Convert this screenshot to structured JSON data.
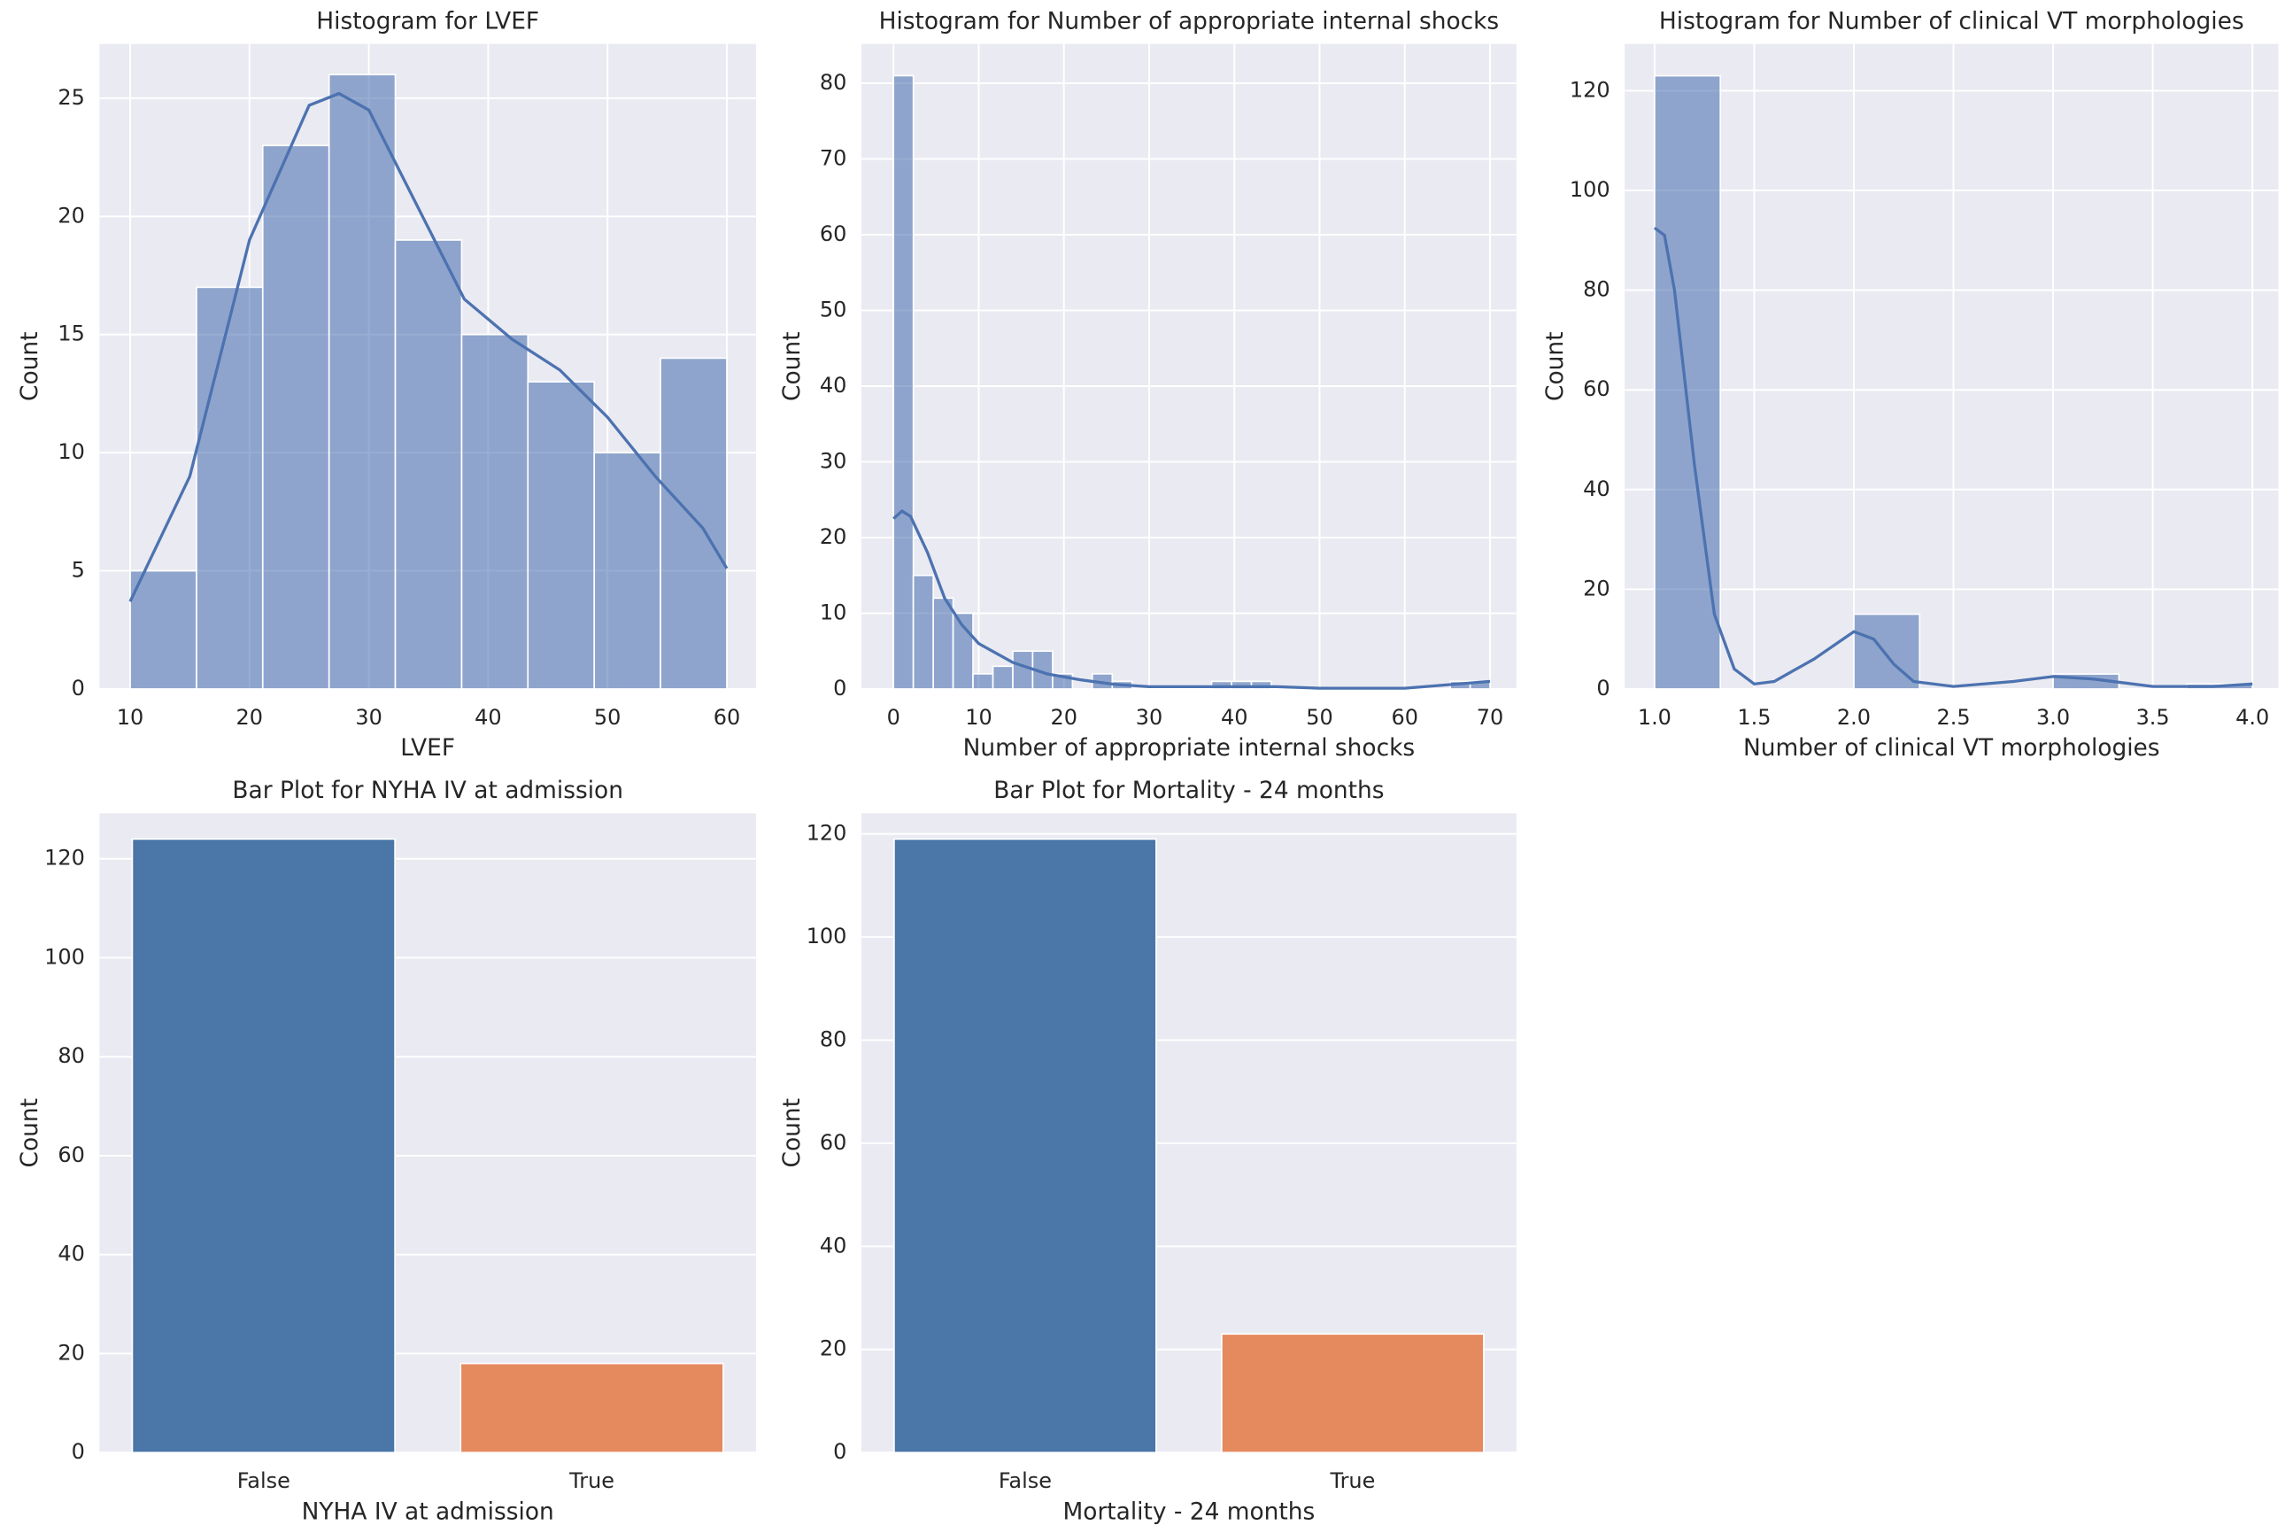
{
  "chart_data": [
    {
      "type": "histogram",
      "title": "Histogram for LVEF",
      "x_label": "LVEF",
      "y_label": "Count",
      "bins": [
        10,
        15.56,
        21.11,
        26.67,
        32.22,
        37.78,
        43.33,
        48.89,
        54.44,
        60
      ],
      "values": [
        5,
        17,
        23,
        26,
        19,
        15,
        13,
        10,
        14
      ],
      "color": "#4c72b0",
      "kde": {
        "x": [
          10,
          15,
          20,
          25,
          27.5,
          30,
          35,
          38,
          42,
          46,
          50,
          54,
          58,
          60
        ],
        "values": [
          3.7,
          9,
          19,
          24.7,
          25.2,
          24.5,
          19.5,
          16.5,
          14.8,
          13.5,
          11.5,
          9,
          6.8,
          5.1
        ]
      },
      "xlim": [
        7.43,
        62.45
      ],
      "ylim": [
        0,
        27.3
      ],
      "xticks": [
        10,
        20,
        30,
        40,
        50,
        60
      ],
      "yticks": [
        0,
        5,
        10,
        15,
        20,
        25
      ],
      "grid": true
    },
    {
      "type": "histogram",
      "title": "Histogram for Number of appropriate internal shocks",
      "x_label": "Number of appropriate internal shocks",
      "y_label": "Count",
      "bins": [
        0,
        2.33,
        4.67,
        7,
        9.33,
        11.67,
        14,
        16.33,
        18.67,
        21,
        23.33,
        25.67,
        28,
        30.33,
        32.67,
        35,
        37.33,
        39.67,
        42,
        44.33,
        46.67,
        49,
        51.33,
        53.67,
        56,
        58.33,
        60.67,
        63,
        65.33,
        67.67,
        70
      ],
      "values": [
        81,
        15,
        12,
        10,
        2,
        3,
        5,
        5,
        2,
        0,
        2,
        1,
        0,
        0,
        0,
        0,
        1,
        1,
        1,
        0,
        0,
        0,
        0,
        0,
        0,
        0,
        0,
        0,
        1,
        1
      ],
      "color": "#4c72b0",
      "kde": {
        "x": [
          0,
          1,
          2,
          4,
          6,
          8,
          10,
          14,
          18,
          22,
          26,
          30,
          40,
          45,
          50,
          60,
          70
        ],
        "values": [
          22.5,
          23.5,
          22.8,
          18,
          12,
          8.5,
          6,
          3.5,
          2,
          1.2,
          0.6,
          0.3,
          0.3,
          0.3,
          0.1,
          0.1,
          1
        ]
      },
      "xlim": [
        -3.77,
        73.1
      ],
      "ylim": [
        0,
        85.2
      ],
      "xticks": [
        0,
        10,
        20,
        30,
        40,
        50,
        60,
        70
      ],
      "yticks": [
        0,
        10,
        20,
        30,
        40,
        50,
        60,
        70,
        80
      ],
      "grid": true
    },
    {
      "type": "histogram",
      "title": "Histogram for Number of clinical VT morphologies",
      "x_label": "Number of clinical VT morphologies",
      "y_label": "Count",
      "bins": [
        1,
        1.33,
        1.67,
        2,
        2.33,
        2.67,
        3,
        3.33,
        3.67,
        4
      ],
      "values": [
        123,
        0,
        0,
        15,
        0,
        0,
        3,
        0,
        1
      ],
      "color": "#4c72b0",
      "kde": {
        "x": [
          1,
          1.05,
          1.1,
          1.2,
          1.3,
          1.4,
          1.5,
          1.6,
          1.8,
          2,
          2.1,
          2.2,
          2.3,
          2.5,
          2.8,
          3,
          3.2,
          3.5,
          3.8,
          4
        ],
        "values": [
          92.5,
          91,
          80,
          45,
          15,
          4,
          1,
          1.5,
          6,
          11.5,
          10,
          5,
          1.5,
          0.5,
          1.5,
          2.5,
          2,
          0.5,
          0.5,
          1
        ]
      },
      "xlim": [
        0.85,
        4.13
      ],
      "ylim": [
        0,
        129.4
      ],
      "xticks": [
        {
          "value": 1,
          "label": "1.0"
        },
        1.5,
        {
          "value": 2,
          "label": "2.0"
        },
        2.5,
        {
          "value": 3,
          "label": "3.0"
        },
        3.5,
        {
          "value": 4,
          "label": "4.0"
        }
      ],
      "yticks": [
        0,
        20,
        40,
        60,
        80,
        100,
        120
      ],
      "grid": true
    },
    {
      "type": "bar",
      "title": "Bar Plot for NYHA IV at admission",
      "x_label": "NYHA IV at admission",
      "y_label": "Count",
      "categories": [
        "False",
        "True"
      ],
      "values": [
        124,
        18
      ],
      "colors": [
        "#4a76a8",
        "#e5895f"
      ],
      "ylim": [
        0,
        129.2
      ],
      "yticks": [
        0,
        20,
        40,
        60,
        80,
        100,
        120
      ],
      "grid": true
    },
    {
      "type": "bar",
      "title": "Bar Plot for Mortality - 24 months",
      "x_label": "Mortality - 24 months",
      "y_label": "Count",
      "categories": [
        "False",
        "True"
      ],
      "values": [
        119,
        23
      ],
      "colors": [
        "#4a76a8",
        "#e5895f"
      ],
      "ylim": [
        0,
        124
      ],
      "yticks": [
        0,
        20,
        40,
        60,
        80,
        100,
        120
      ],
      "grid": true
    }
  ]
}
